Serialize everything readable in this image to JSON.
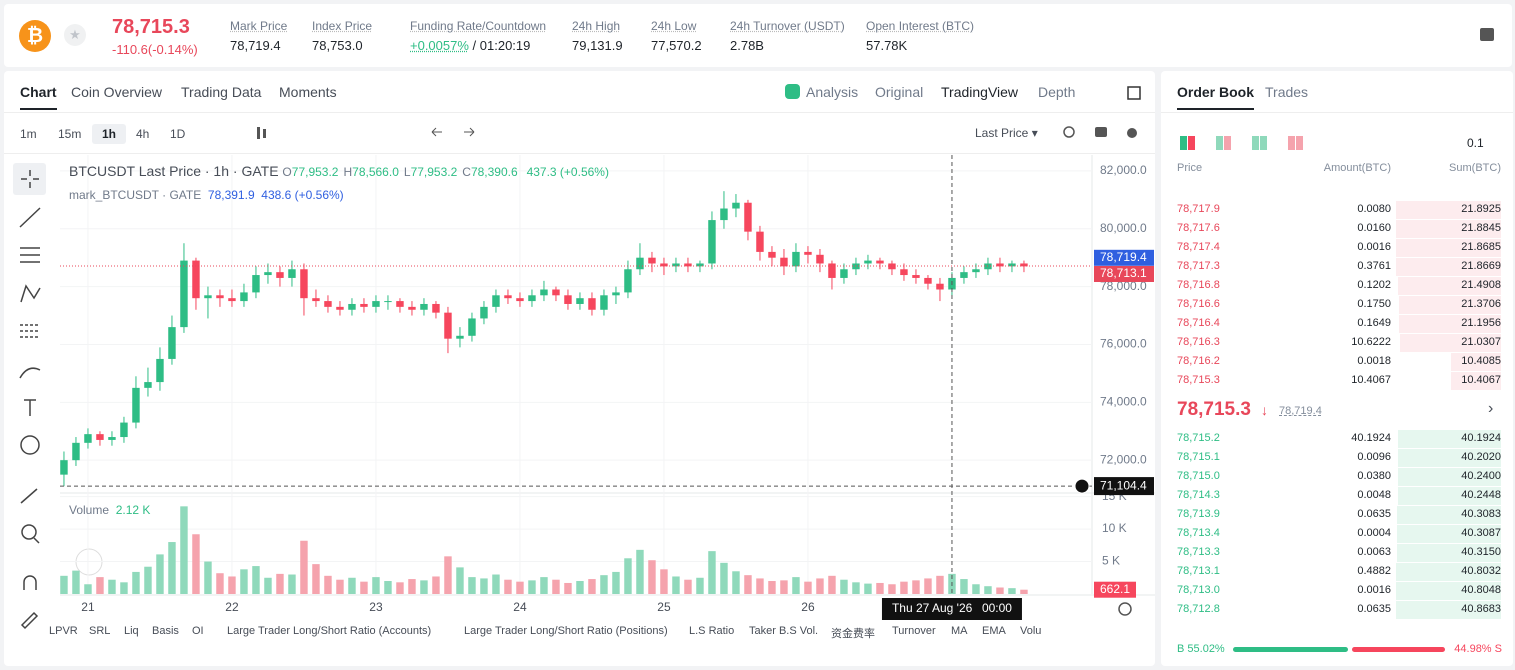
{
  "header": {
    "price": "78,715.3",
    "change": "-110.6(-0.14%)",
    "stats": [
      {
        "label": "Mark Price",
        "value": "78,719.4"
      },
      {
        "label": "Index Price",
        "value": "78,753.0"
      },
      {
        "label": "Funding Rate/Countdown",
        "value": "+0.0057%",
        "extra": "/ 01:20:19"
      },
      {
        "label": "24h High",
        "value": "79,131.9"
      },
      {
        "label": "24h Low",
        "value": "77,570.2"
      },
      {
        "label": "24h Turnover (USDT)",
        "value": "2.78B"
      },
      {
        "label": "Open Interest (BTC)",
        "value": "57.78K"
      }
    ]
  },
  "tabs": [
    "Chart",
    "Coin Overview",
    "Trading Data",
    "Moments"
  ],
  "views": [
    "Analysis",
    "Original",
    "TradingView",
    "Depth"
  ],
  "intervals": [
    "1m",
    "15m",
    "1h",
    "4h",
    "1D"
  ],
  "price_source": "Last Price",
  "legend": {
    "title": "BTCUSDT Last Price · 1h · GATE",
    "ohlc": [
      {
        "k": "O",
        "v": "77,953.2"
      },
      {
        "k": "H",
        "v": "78,566.0"
      },
      {
        "k": "L",
        "v": "77,953.2"
      },
      {
        "k": "C",
        "v": "78,390.6"
      }
    ],
    "change": "437.3 (+0.56%)",
    "mark": "mark_BTCUSDT · GATE",
    "mark_values": "78,391.9  438.6 (+0.56%)"
  },
  "chart_data": {
    "type": "candlestick",
    "up_color": "#2ebd85",
    "down_color": "#f6465d",
    "volume_up_color": "#8fd9bb",
    "volume_down_color": "#f5a3ad",
    "open": [
      71500,
      72000,
      72600,
      72900,
      72700,
      72800,
      73300,
      74500,
      74700,
      75500,
      76600,
      78900,
      77600,
      77700,
      77600,
      77500,
      77800,
      78400,
      78500,
      78300,
      78600,
      77600,
      77500,
      77300,
      77200,
      77400,
      77300,
      77500,
      77500,
      77300,
      77200,
      77400,
      77100,
      76200,
      76300,
      76900,
      77300,
      77700,
      77600,
      77500,
      77700,
      77900,
      77700,
      77400,
      77600,
      77200,
      77700,
      77800,
      78600,
      79000,
      78800,
      78700,
      78800,
      78700,
      78800,
      80300,
      80700,
      80900,
      79900,
      79200,
      79000,
      78700,
      79200,
      79100,
      78800,
      78300,
      78600,
      78800,
      78900,
      78800,
      78600,
      78400,
      78300,
      78100,
      77900,
      78300,
      78500,
      78600,
      78800,
      78700,
      78800
    ],
    "high": [
      72300,
      72800,
      73100,
      73000,
      73000,
      73500,
      74900,
      75200,
      75900,
      77000,
      79500,
      79000,
      78000,
      77900,
      77900,
      78100,
      78700,
      78800,
      78700,
      78900,
      78800,
      77900,
      77700,
      77500,
      77600,
      77600,
      77700,
      77700,
      77600,
      77500,
      77600,
      77500,
      77300,
      76600,
      77100,
      77500,
      77900,
      77900,
      77800,
      77900,
      78200,
      78000,
      77900,
      77800,
      77800,
      77900,
      78000,
      78900,
      79500,
      79200,
      79000,
      79000,
      79000,
      78900,
      80600,
      81300,
      81200,
      81000,
      80100,
      79400,
      79300,
      79500,
      79400,
      79300,
      78900,
      78800,
      79000,
      79100,
      79000,
      78900,
      78800,
      78600,
      78400,
      78300,
      78500,
      78700,
      78800,
      79000,
      79000,
      78900,
      78900
    ],
    "low": [
      71100,
      71800,
      72400,
      72500,
      72500,
      72600,
      73100,
      74200,
      74400,
      75300,
      76400,
      77200,
      76900,
      77300,
      77300,
      77300,
      77600,
      78100,
      78000,
      78000,
      77000,
      77300,
      77100,
      77000,
      77000,
      77100,
      77100,
      77200,
      77100,
      77000,
      77000,
      76900,
      75700,
      75900,
      76100,
      76700,
      77100,
      77400,
      77300,
      77300,
      77500,
      77500,
      77200,
      77200,
      77000,
      77000,
      77400,
      77600,
      78400,
      78500,
      78400,
      78500,
      78500,
      78500,
      78600,
      80000,
      80400,
      79600,
      78900,
      78700,
      78400,
      78500,
      78800,
      78500,
      77900,
      78100,
      78400,
      78600,
      78600,
      78400,
      78200,
      78100,
      77900,
      77500,
      77700,
      78100,
      78300,
      78400,
      78500,
      78500,
      78500
    ],
    "close": [
      72000,
      72600,
      72900,
      72700,
      72800,
      73300,
      74500,
      74700,
      75500,
      76600,
      78900,
      77600,
      77700,
      77600,
      77500,
      77800,
      78400,
      78500,
      78300,
      78600,
      77600,
      77500,
      77300,
      77200,
      77400,
      77300,
      77500,
      77500,
      77300,
      77200,
      77400,
      77100,
      76200,
      76300,
      76900,
      77300,
      77700,
      77600,
      77500,
      77700,
      77900,
      77700,
      77400,
      77600,
      77200,
      77700,
      77800,
      78600,
      79000,
      78800,
      78700,
      78800,
      78700,
      78800,
      80300,
      80700,
      80900,
      79900,
      79200,
      79000,
      78700,
      79200,
      79100,
      78800,
      78300,
      78600,
      78800,
      78900,
      78800,
      78600,
      78400,
      78300,
      78100,
      77900,
      78300,
      78500,
      78600,
      78800,
      78700,
      78800,
      78700
    ],
    "volume": [
      2800,
      3600,
      1500,
      2600,
      2200,
      1800,
      3400,
      4200,
      6100,
      8000,
      13500,
      9200,
      5000,
      3200,
      2700,
      3800,
      4300,
      2500,
      3100,
      3000,
      8200,
      4600,
      2800,
      2200,
      2500,
      1900,
      2600,
      2000,
      1800,
      2300,
      2100,
      2700,
      5800,
      4100,
      2600,
      2400,
      3000,
      2200,
      1900,
      2100,
      2600,
      2200,
      1700,
      2000,
      2300,
      2900,
      3400,
      5500,
      6800,
      5200,
      3800,
      2700,
      2200,
      2500,
      6600,
      4800,
      3500,
      2900,
      2400,
      2000,
      2100,
      2600,
      1900,
      2400,
      2800,
      2200,
      1800,
      1600,
      1700,
      1500,
      1900,
      2100,
      2400,
      2800,
      3100,
      2300,
      1500,
      1200,
      1000,
      900,
      662.1
    ],
    "ylim": [
      70900,
      82550
    ],
    "yticks": [
      {
        "value": 72000,
        "label": "72,000.0"
      },
      {
        "value": 74000,
        "label": "74,000.0"
      },
      {
        "value": 76000,
        "label": "76,000.0"
      },
      {
        "value": 78000,
        "label": "78,000.0"
      },
      {
        "value": 80000,
        "label": "80,000.0"
      },
      {
        "value": 82000,
        "label": "82,000.0"
      }
    ],
    "volume_ylim": [
      0,
      15400
    ],
    "volume_yticks": [
      {
        "value": 5000,
        "label": "5 K"
      },
      {
        "value": 10000,
        "label": "10 K"
      },
      {
        "value": 15000,
        "label": "15 K"
      }
    ],
    "volume_label": "Volume",
    "volume_value": "2.12 K",
    "xlim": [
      -0.33,
      85.67
    ],
    "xticks": [
      {
        "value": 2,
        "label": "21"
      },
      {
        "value": 14,
        "label": "22"
      },
      {
        "value": 26,
        "label": "23"
      },
      {
        "value": 38,
        "label": "24"
      },
      {
        "value": 50,
        "label": "25"
      },
      {
        "value": 62,
        "label": "26"
      }
    ],
    "price_lines": [
      {
        "value": 78719.4,
        "label": "78,719.4",
        "color": "#2f5fe0"
      },
      {
        "value": 78713.1,
        "label": "78,713.1",
        "color": "#e8475a"
      }
    ],
    "crosshair": {
      "x": 74,
      "y": 71104.4,
      "y_label": "71,104.4",
      "x_date": "Thu 27 Aug '26",
      "x_time": "00:00"
    }
  },
  "indicators": [
    "LPVR",
    "SRL",
    "Liq",
    "Basis",
    "OI",
    "Large Trader Long/Short Ratio (Accounts)",
    "Large Trader Long/Short Ratio (Positions)",
    "L.S Ratio",
    "Taker B.S Vol.",
    "资金费率",
    "Turnover",
    "MA",
    "EMA",
    "Volu"
  ],
  "order_book": {
    "tabs": [
      "Order Book",
      "Trades"
    ],
    "precision": "0.1",
    "columns": [
      "Price",
      "Amount(BTC)",
      "Sum(BTC)"
    ],
    "asks": [
      [
        "78,717.9",
        "0.0080",
        "21.8925"
      ],
      [
        "78,717.6",
        "0.0160",
        "21.8845"
      ],
      [
        "78,717.4",
        "0.0016",
        "21.8685"
      ],
      [
        "78,717.3",
        "0.3761",
        "21.8669"
      ],
      [
        "78,716.8",
        "0.1202",
        "21.4908"
      ],
      [
        "78,716.6",
        "0.1750",
        "21.3706"
      ],
      [
        "78,716.4",
        "0.1649",
        "21.1956"
      ],
      [
        "78,716.3",
        "10.6222",
        "21.0307"
      ],
      [
        "78,716.2",
        "0.0018",
        "10.4085"
      ],
      [
        "78,715.3",
        "10.4067",
        "10.4067"
      ]
    ],
    "last": "78,715.3",
    "mark": "78,719.4",
    "bids": [
      [
        "78,715.2",
        "40.1924",
        "40.1924"
      ],
      [
        "78,715.1",
        "0.0096",
        "40.2020"
      ],
      [
        "78,715.0",
        "0.0380",
        "40.2400"
      ],
      [
        "78,714.3",
        "0.0048",
        "40.2448"
      ],
      [
        "78,713.9",
        "0.0635",
        "40.3083"
      ],
      [
        "78,713.4",
        "0.0004",
        "40.3087"
      ],
      [
        "78,713.3",
        "0.0063",
        "40.3150"
      ],
      [
        "78,713.1",
        "0.4882",
        "40.8032"
      ],
      [
        "78,713.0",
        "0.0016",
        "40.8048"
      ],
      [
        "78,712.8",
        "0.0635",
        "40.8683"
      ]
    ],
    "buy": {
      "value": 55.02,
      "label": "55.02%",
      "side": "B"
    },
    "sell": {
      "value": 44.98,
      "label": "44.98%",
      "side": "S"
    }
  }
}
